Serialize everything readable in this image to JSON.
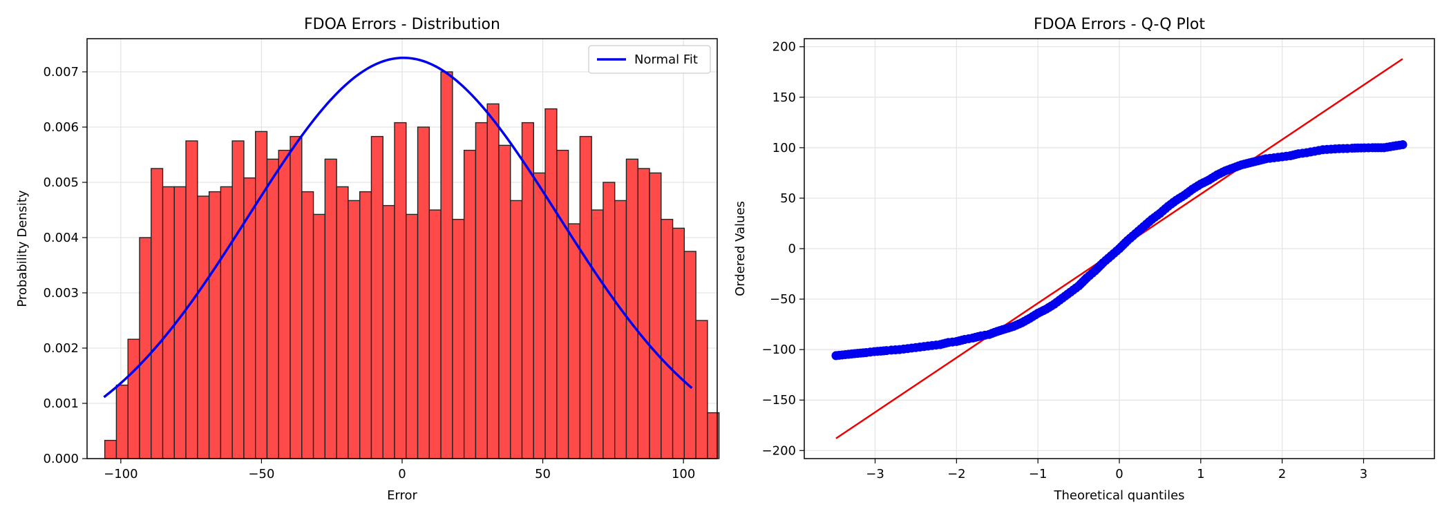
{
  "chart_data": [
    {
      "type": "bar",
      "title": "FDOA Errors - Distribution",
      "xlabel": "Error",
      "ylabel": "Probability Density",
      "xlim": [
        -112,
        112
      ],
      "ylim": [
        0,
        0.0076
      ],
      "xticks": [
        -100,
        -50,
        0,
        50,
        100
      ],
      "xtick_labels": [
        "−100",
        "−50",
        "0",
        "50",
        "100"
      ],
      "yticks": [
        0,
        0.001,
        0.002,
        0.003,
        0.004,
        0.005,
        0.006,
        0.007
      ],
      "ytick_labels": [
        "0.000",
        "0.001",
        "0.002",
        "0.003",
        "0.004",
        "0.005",
        "0.006",
        "0.007"
      ],
      "grid": true,
      "legend": {
        "position": "upper-right",
        "entries": [
          "Normal Fit"
        ]
      },
      "bin_start": -105.7,
      "bin_width": 4.12,
      "values": [
        0.00033,
        0.00133,
        0.00216,
        0.004,
        0.00525,
        0.00492,
        0.00492,
        0.00575,
        0.00475,
        0.00483,
        0.00492,
        0.00575,
        0.00508,
        0.00592,
        0.00542,
        0.00558,
        0.00583,
        0.00483,
        0.00442,
        0.00542,
        0.00492,
        0.00467,
        0.00483,
        0.00583,
        0.00458,
        0.00608,
        0.00442,
        0.006,
        0.0045,
        0.007,
        0.00433,
        0.00558,
        0.00608,
        0.00642,
        0.00567,
        0.00467,
        0.00608,
        0.00517,
        0.00633,
        0.00558,
        0.00425,
        0.00583,
        0.0045,
        0.005,
        0.00467,
        0.00542,
        0.00525,
        0.00517,
        0.00433,
        0.00417,
        0.00375,
        0.0025,
        0.00083
      ],
      "series": [
        {
          "name": "Normal Fit",
          "type": "line",
          "mean": 0.5,
          "std": 55.0,
          "x_range": [
            -106,
            103
          ]
        }
      ],
      "colors": {
        "bars": "#ff4a4a",
        "bar_edge": "#222222",
        "fit": "#0000ee"
      }
    },
    {
      "type": "scatter",
      "title": "FDOA Errors - Q-Q Plot",
      "xlabel": "Theoretical quantiles",
      "ylabel": "Ordered Values",
      "xlim": [
        -3.87,
        3.87
      ],
      "ylim": [
        -208,
        208
      ],
      "xticks": [
        -3,
        -2,
        -1,
        0,
        1,
        2,
        3
      ],
      "xtick_labels": [
        "−3",
        "−2",
        "−1",
        "0",
        "1",
        "2",
        "3"
      ],
      "yticks": [
        -200,
        -150,
        -100,
        -50,
        0,
        50,
        100,
        150,
        200
      ],
      "ytick_labels": [
        "−200",
        "−150",
        "−100",
        "−50",
        "0",
        "50",
        "100",
        "150",
        "200"
      ],
      "grid": true,
      "points": [
        [
          -3.48,
          -106
        ],
        [
          -3.25,
          -104
        ],
        [
          -3.11,
          -103
        ],
        [
          -3.01,
          -102
        ],
        [
          -2.93,
          -101.5
        ],
        [
          -2.86,
          -101
        ],
        [
          -2.8,
          -100.5
        ],
        [
          -2.7,
          -100
        ],
        [
          -2.6,
          -99
        ],
        [
          -2.5,
          -98
        ],
        [
          -2.4,
          -97
        ],
        [
          -2.3,
          -96
        ],
        [
          -2.2,
          -95
        ],
        [
          -2.1,
          -93
        ],
        [
          -2.0,
          -92
        ],
        [
          -1.9,
          -90
        ],
        [
          -1.8,
          -88.5
        ],
        [
          -1.7,
          -86.5
        ],
        [
          -1.6,
          -85
        ],
        [
          -1.5,
          -82
        ],
        [
          -1.4,
          -79.5
        ],
        [
          -1.3,
          -77
        ],
        [
          -1.2,
          -73.5
        ],
        [
          -1.1,
          -69
        ],
        [
          -1.0,
          -64
        ],
        [
          -0.9,
          -60
        ],
        [
          -0.8,
          -55
        ],
        [
          -0.7,
          -49
        ],
        [
          -0.6,
          -43
        ],
        [
          -0.5,
          -37
        ],
        [
          -0.4,
          -29
        ],
        [
          -0.3,
          -22
        ],
        [
          -0.2,
          -14
        ],
        [
          -0.1,
          -7
        ],
        [
          0.0,
          0
        ],
        [
          0.1,
          8
        ],
        [
          0.2,
          15
        ],
        [
          0.3,
          22
        ],
        [
          0.4,
          29
        ],
        [
          0.5,
          35
        ],
        [
          0.6,
          42
        ],
        [
          0.7,
          48
        ],
        [
          0.8,
          53
        ],
        [
          0.9,
          59
        ],
        [
          1.0,
          64
        ],
        [
          1.1,
          68
        ],
        [
          1.2,
          73
        ],
        [
          1.3,
          77
        ],
        [
          1.4,
          80
        ],
        [
          1.5,
          83
        ],
        [
          1.6,
          85
        ],
        [
          1.7,
          87
        ],
        [
          1.8,
          89
        ],
        [
          1.9,
          90
        ],
        [
          2.0,
          91
        ],
        [
          2.1,
          92
        ],
        [
          2.2,
          94
        ],
        [
          2.3,
          95
        ],
        [
          2.4,
          96.5
        ],
        [
          2.5,
          98
        ],
        [
          2.6,
          98.5
        ],
        [
          2.7,
          99
        ],
        [
          2.8,
          99.2
        ],
        [
          2.86,
          99.5
        ],
        [
          2.93,
          99.7
        ],
        [
          3.01,
          99.8
        ],
        [
          3.11,
          100
        ],
        [
          3.25,
          100
        ],
        [
          3.48,
          103
        ]
      ],
      "reference_line": [
        [
          -3.48,
          -188
        ],
        [
          3.48,
          188
        ]
      ],
      "colors": {
        "points": "#0000ee",
        "line": "#ee0000"
      }
    }
  ]
}
